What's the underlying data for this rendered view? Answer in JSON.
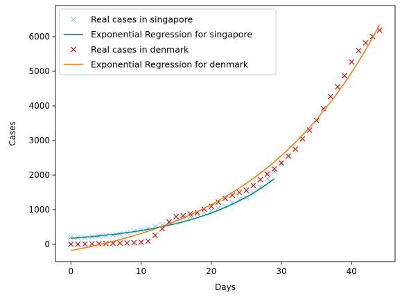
{
  "chart_data": {
    "type": "line",
    "title": "",
    "xlabel": "Days",
    "ylabel": "Cases",
    "xlim": [
      -2.2,
      46.2
    ],
    "ylim": [
      -500,
      6900
    ],
    "xticks": [
      0,
      10,
      20,
      30,
      40
    ],
    "yticks": [
      0,
      1000,
      2000,
      3000,
      4000,
      5000,
      6000
    ],
    "grid": false,
    "legend_position": "top-left",
    "series": [
      {
        "name": "Real cases in singapore",
        "kind": "scatter",
        "marker": "x",
        "color": "#87ceeb",
        "x": [
          0,
          1,
          2,
          3,
          4,
          5,
          6,
          7,
          8,
          9,
          10,
          11,
          12,
          13,
          14,
          15,
          16,
          17,
          18,
          19,
          20,
          21,
          22,
          23,
          24,
          25,
          26,
          27,
          28,
          29
        ],
        "y": [
          200,
          200,
          200,
          220,
          240,
          250,
          270,
          300,
          330,
          380,
          420,
          460,
          520,
          560,
          620,
          700,
          760,
          800,
          880,
          920,
          980,
          1050,
          1100,
          1200,
          1300,
          1350,
          1480,
          1650,
          1900,
          2100
        ]
      },
      {
        "name": "Exponential Regression for singapore",
        "kind": "line",
        "color": "#008b8b",
        "function": "exp",
        "x_range": [
          0,
          29
        ],
        "a": 175,
        "b": 0.0822
      },
      {
        "name": "Real cases in denmark",
        "kind": "scatter",
        "marker": "x",
        "color": "#dd0000",
        "x": [
          0,
          1,
          2,
          3,
          4,
          5,
          6,
          7,
          8,
          9,
          10,
          11,
          12,
          13,
          14,
          15,
          16,
          17,
          18,
          19,
          20,
          21,
          22,
          23,
          24,
          25,
          26,
          27,
          28,
          29,
          30,
          31,
          32,
          33,
          34,
          35,
          36,
          37,
          38,
          39,
          40,
          41,
          42,
          43,
          44
        ],
        "y": [
          5,
          5,
          10,
          15,
          20,
          25,
          30,
          35,
          40,
          50,
          60,
          90,
          260,
          450,
          650,
          800,
          830,
          880,
          920,
          1020,
          1100,
          1220,
          1330,
          1420,
          1500,
          1560,
          1700,
          1870,
          2030,
          2180,
          2350,
          2550,
          2750,
          3050,
          3300,
          3580,
          3920,
          4270,
          4550,
          4870,
          5270,
          5600,
          5820,
          6010,
          6190
        ]
      },
      {
        "name": "Exponential Regression for denmark",
        "kind": "line",
        "color": "#ff7f0e",
        "function": "exp_offset",
        "x_range": [
          0,
          44
        ],
        "a": 705,
        "b": 0.0529,
        "c": -883
      }
    ]
  }
}
